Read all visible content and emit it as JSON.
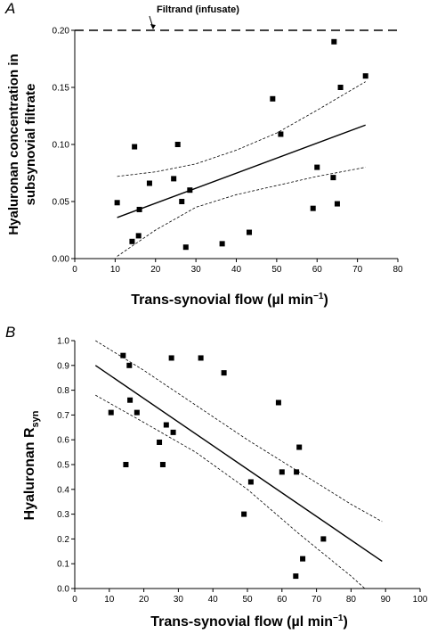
{
  "chart_data": [
    {
      "type": "scatter",
      "panel_label": "A",
      "xlabel": "Trans-synovial flow (µl min",
      "xlabel_sup": "−1",
      "xlabel_close": ")",
      "ylabel_line1": "Hyaluronan concentration in",
      "ylabel_line2": "subsynovial filtrate",
      "xlim": [
        0,
        80
      ],
      "ylim": [
        0,
        0.2
      ],
      "xticks": [
        "0",
        "10",
        "20",
        "30",
        "40",
        "50",
        "60",
        "70",
        "80"
      ],
      "yticks": [
        "0.00",
        "0.05",
        "0.10",
        "0.15",
        "0.20"
      ],
      "reference_line": {
        "y": 0.2,
        "label": "Filtrand (infusate)",
        "style": "dashed"
      },
      "points": [
        {
          "x": 10.5,
          "y": 0.049
        },
        {
          "x": 14.2,
          "y": 0.015
        },
        {
          "x": 14.8,
          "y": 0.098
        },
        {
          "x": 15.8,
          "y": 0.02
        },
        {
          "x": 16.0,
          "y": 0.043
        },
        {
          "x": 18.5,
          "y": 0.066
        },
        {
          "x": 24.5,
          "y": 0.07
        },
        {
          "x": 25.5,
          "y": 0.1
        },
        {
          "x": 26.5,
          "y": 0.05
        },
        {
          "x": 27.5,
          "y": 0.01
        },
        {
          "x": 28.5,
          "y": 0.06
        },
        {
          "x": 36.5,
          "y": 0.013
        },
        {
          "x": 43.2,
          "y": 0.023
        },
        {
          "x": 49.0,
          "y": 0.14
        },
        {
          "x": 51.0,
          "y": 0.109
        },
        {
          "x": 59.0,
          "y": 0.044
        },
        {
          "x": 60.0,
          "y": 0.08
        },
        {
          "x": 64.0,
          "y": 0.071
        },
        {
          "x": 64.2,
          "y": 0.19
        },
        {
          "x": 65.0,
          "y": 0.048
        },
        {
          "x": 65.8,
          "y": 0.15
        },
        {
          "x": 72.0,
          "y": 0.16
        }
      ],
      "regression": {
        "x": [
          10.5,
          72.0
        ],
        "y": [
          0.036,
          0.117
        ]
      },
      "ci_upper": {
        "x": [
          10.5,
          20,
          30,
          40,
          50,
          60,
          72
        ],
        "y": [
          0.072,
          0.076,
          0.083,
          0.095,
          0.11,
          0.13,
          0.155
        ]
      },
      "ci_lower": {
        "x": [
          10.5,
          20,
          30,
          40,
          50,
          60,
          72
        ],
        "y": [
          0.002,
          0.025,
          0.045,
          0.056,
          0.064,
          0.072,
          0.08
        ]
      }
    },
    {
      "type": "scatter",
      "panel_label": "B",
      "xlabel": "Trans-synovial flow (µl min",
      "xlabel_sup": "−1",
      "xlabel_close": ")",
      "ylabel": "Hyaluronan R",
      "ylabel_sub": "syn",
      "xlim": [
        0,
        100
      ],
      "ylim": [
        0,
        1.0
      ],
      "xticks": [
        "0",
        "10",
        "20",
        "30",
        "40",
        "50",
        "60",
        "70",
        "80",
        "90",
        "100"
      ],
      "yticks": [
        "0.0",
        "0.1",
        "0.2",
        "0.3",
        "0.4",
        "0.5",
        "0.6",
        "0.7",
        "0.8",
        "0.9",
        "1.0"
      ],
      "points": [
        {
          "x": 10.5,
          "y": 0.71
        },
        {
          "x": 14.0,
          "y": 0.94
        },
        {
          "x": 14.8,
          "y": 0.5
        },
        {
          "x": 15.8,
          "y": 0.9
        },
        {
          "x": 16.0,
          "y": 0.76
        },
        {
          "x": 18.0,
          "y": 0.71
        },
        {
          "x": 24.5,
          "y": 0.59
        },
        {
          "x": 25.5,
          "y": 0.5
        },
        {
          "x": 26.5,
          "y": 0.66
        },
        {
          "x": 28.0,
          "y": 0.93
        },
        {
          "x": 28.5,
          "y": 0.63
        },
        {
          "x": 36.5,
          "y": 0.93
        },
        {
          "x": 43.2,
          "y": 0.87
        },
        {
          "x": 49.0,
          "y": 0.3
        },
        {
          "x": 51.0,
          "y": 0.43
        },
        {
          "x": 59.0,
          "y": 0.75
        },
        {
          "x": 60.0,
          "y": 0.47
        },
        {
          "x": 64.0,
          "y": 0.05
        },
        {
          "x": 64.2,
          "y": 0.47
        },
        {
          "x": 65.0,
          "y": 0.57
        },
        {
          "x": 66.0,
          "y": 0.12
        },
        {
          "x": 72.0,
          "y": 0.2
        }
      ],
      "regression": {
        "x": [
          6,
          89
        ],
        "y": [
          0.9,
          0.11
        ]
      },
      "ci_upper": {
        "x": [
          6,
          20,
          35,
          50,
          65,
          80,
          89
        ],
        "y": [
          1.0,
          0.88,
          0.74,
          0.6,
          0.47,
          0.34,
          0.27
        ]
      },
      "ci_lower": {
        "x": [
          6,
          20,
          35,
          50,
          65,
          80,
          84
        ],
        "y": [
          0.78,
          0.67,
          0.55,
          0.4,
          0.22,
          0.05,
          0.0
        ]
      }
    }
  ]
}
